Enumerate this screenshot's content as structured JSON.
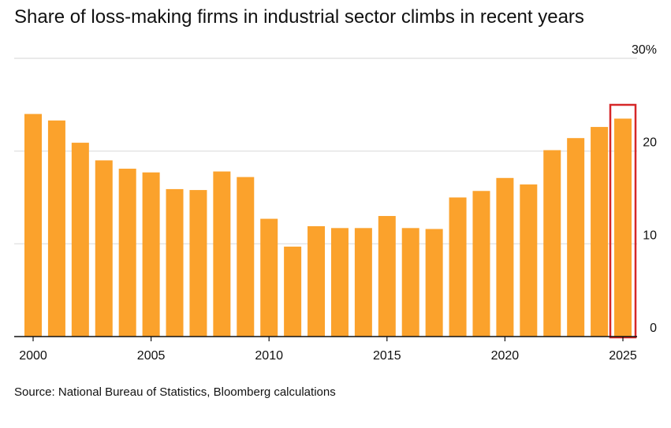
{
  "chart_data": {
    "type": "bar",
    "title": "Share of loss-making firms in industrial sector climbs in recent years",
    "source": "Source: National Bureau of Statistics, Bloomberg calculations",
    "xlabel": "",
    "ylabel": "",
    "unit_suffix": "%",
    "ylim": [
      0,
      30
    ],
    "yticks": [
      0,
      10,
      20,
      30
    ],
    "ytick_labels": [
      "0",
      "10",
      "20",
      "30%"
    ],
    "xticks": [
      2000,
      2005,
      2010,
      2015,
      2020,
      2025
    ],
    "xtick_labels": [
      "2000",
      "2005",
      "2010",
      "2015",
      "2020",
      "2025"
    ],
    "categories": [
      2000,
      2001,
      2002,
      2003,
      2004,
      2005,
      2006,
      2007,
      2008,
      2009,
      2010,
      2011,
      2012,
      2013,
      2014,
      2015,
      2016,
      2017,
      2018,
      2019,
      2020,
      2021,
      2022,
      2023,
      2024,
      2025
    ],
    "values": [
      24.0,
      23.3,
      20.9,
      19.0,
      18.1,
      17.7,
      15.9,
      15.8,
      17.8,
      17.2,
      12.7,
      9.7,
      11.9,
      11.7,
      11.7,
      13.0,
      11.7,
      11.6,
      15.0,
      15.7,
      17.1,
      16.4,
      20.1,
      21.4,
      22.6,
      23.5
    ],
    "highlight_category": 2025,
    "grid": true,
    "colors": {
      "bar": "#FBA22C",
      "grid": "#DDDDDD",
      "axis": "#111111",
      "highlight": "#D62728"
    }
  }
}
